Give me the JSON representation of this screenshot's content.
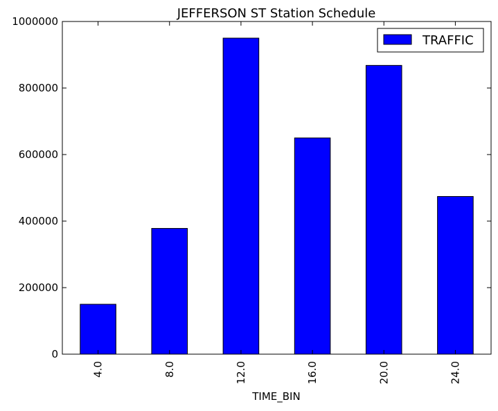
{
  "chart_data": {
    "type": "bar",
    "title": "JEFFERSON ST Station Schedule",
    "xlabel": "TIME_BIN",
    "ylabel": "",
    "categories": [
      "4.0",
      "8.0",
      "12.0",
      "16.0",
      "20.0",
      "24.0"
    ],
    "series": [
      {
        "name": "TRAFFIC",
        "values": [
          150000,
          378000,
          950000,
          650000,
          868000,
          474000
        ]
      }
    ],
    "ylim": [
      0,
      1000000
    ],
    "yticks": [
      0,
      200000,
      400000,
      600000,
      800000,
      1000000
    ],
    "ytick_labels": [
      "0",
      "200000",
      "400000",
      "600000",
      "800000",
      "1000000"
    ],
    "grid": false,
    "legend_position": "top-right",
    "colors": {
      "bar_fill": "#0000ff",
      "bar_edge": "#000000",
      "axes": "#000000",
      "background": "#ffffff"
    }
  }
}
